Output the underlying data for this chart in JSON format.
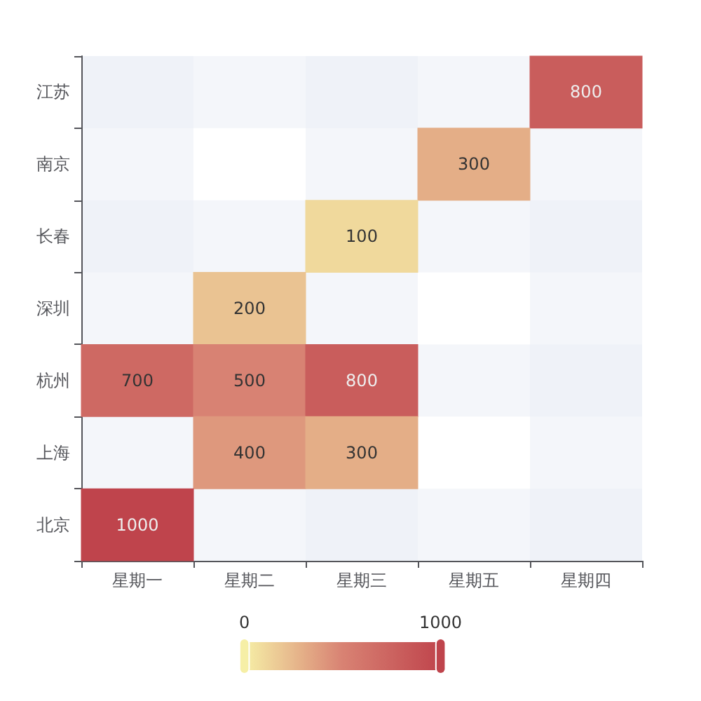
{
  "chart_data": {
    "type": "heatmap",
    "categories": [
      "星期一",
      "星期二",
      "星期三",
      "星期五",
      "星期四"
    ],
    "y_categories": [
      "江苏",
      "南京",
      "长春",
      "深圳",
      "杭州",
      "上海",
      "北京"
    ],
    "cells": [
      [
        null,
        null,
        null,
        null,
        800
      ],
      [
        null,
        null,
        null,
        300,
        null
      ],
      [
        null,
        null,
        100,
        null,
        null
      ],
      [
        null,
        200,
        null,
        null,
        null
      ],
      [
        700,
        500,
        800,
        null,
        null
      ],
      [
        null,
        400,
        300,
        null,
        null
      ],
      [
        1000,
        null,
        null,
        null,
        null
      ]
    ],
    "clim": [
      0,
      1000
    ],
    "cticks": [
      0,
      1000
    ],
    "data_labels": true
  }
}
